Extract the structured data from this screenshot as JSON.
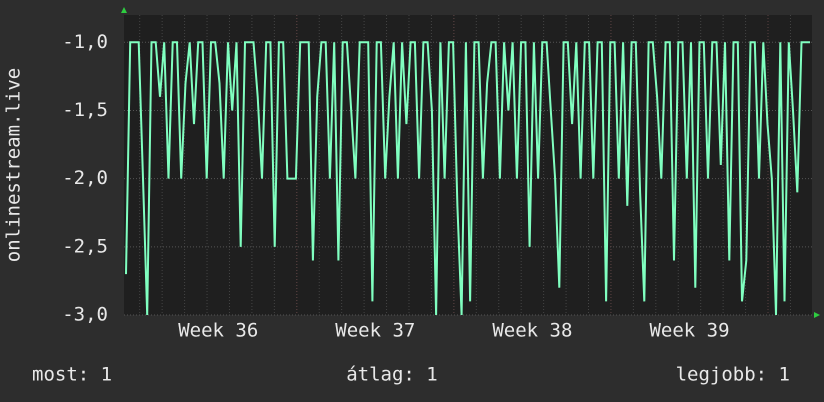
{
  "chart_data": {
    "type": "line",
    "y_label": "onlinestream.live",
    "ylim": [
      -3.0,
      -0.8
    ],
    "yticks": [
      {
        "value": -1.0,
        "label": "-1,0"
      },
      {
        "value": -1.5,
        "label": "-1,5"
      },
      {
        "value": -2.0,
        "label": "-2,0"
      },
      {
        "value": -2.5,
        "label": "-2,5"
      },
      {
        "value": -3.0,
        "label": "-3,0"
      }
    ],
    "xlim": [
      35.4,
      39.78
    ],
    "xticks": [
      {
        "value": 36,
        "label": "Week 36"
      },
      {
        "value": 37,
        "label": "Week 37"
      },
      {
        "value": 38,
        "label": "Week 38"
      },
      {
        "value": 39,
        "label": "Week 39"
      }
    ],
    "grid": true,
    "series": [
      {
        "name": "onlinestream.live",
        "color": "#80ffc0",
        "values": [
          -2.7,
          -1.0,
          -1.0,
          -1.0,
          -2.0,
          -3.0,
          -1.0,
          -1.0,
          -1.4,
          -1.0,
          -2.0,
          -1.0,
          -1.0,
          -2.0,
          -1.3,
          -1.0,
          -1.6,
          -1.0,
          -1.0,
          -2.0,
          -1.0,
          -1.0,
          -1.3,
          -2.0,
          -1.0,
          -1.5,
          -1.0,
          -2.5,
          -1.0,
          -1.0,
          -1.0,
          -1.4,
          -2.0,
          -1.0,
          -1.0,
          -2.5,
          -1.0,
          -1.0,
          -2.0,
          -2.0,
          -2.0,
          -1.0,
          -1.0,
          -1.0,
          -2.6,
          -1.4,
          -1.0,
          -1.0,
          -2.0,
          -1.0,
          -2.6,
          -1.0,
          -1.0,
          -1.5,
          -2.0,
          -1.0,
          -1.0,
          -1.0,
          -2.9,
          -1.0,
          -1.0,
          -2.0,
          -1.4,
          -1.0,
          -2.0,
          -1.0,
          -1.6,
          -1.0,
          -1.0,
          -2.0,
          -1.0,
          -1.0,
          -1.5,
          -3.0,
          -1.0,
          -2.0,
          -1.0,
          -1.0,
          -2.2,
          -3.0,
          -1.0,
          -2.9,
          -1.0,
          -1.0,
          -2.0,
          -1.3,
          -1.0,
          -1.0,
          -2.0,
          -1.0,
          -1.5,
          -1.0,
          -2.0,
          -1.0,
          -1.0,
          -2.5,
          -1.0,
          -2.0,
          -1.0,
          -1.0,
          -1.5,
          -2.0,
          -2.8,
          -1.0,
          -1.0,
          -1.6,
          -1.0,
          -2.0,
          -1.0,
          -1.0,
          -2.0,
          -1.0,
          -1.0,
          -2.9,
          -1.0,
          -1.0,
          -2.0,
          -1.0,
          -2.2,
          -1.0,
          -1.0,
          -2.1,
          -2.9,
          -1.0,
          -1.0,
          -1.4,
          -2.0,
          -1.0,
          -1.0,
          -2.6,
          -1.0,
          -1.0,
          -2.0,
          -1.0,
          -2.8,
          -1.0,
          -1.0,
          -2.0,
          -1.0,
          -1.0,
          -1.9,
          -1.0,
          -2.6,
          -1.0,
          -1.0,
          -2.9,
          -2.6,
          -1.0,
          -1.0,
          -2.0,
          -1.0,
          -1.6,
          -2.0,
          -3.0,
          -1.0,
          -2.9,
          -1.0,
          -1.5,
          -2.1,
          -1.0,
          -1.0,
          -1.0
        ]
      }
    ],
    "footer": [
      "most: 1",
      "átlag: 1",
      "legjobb: 1"
    ]
  }
}
